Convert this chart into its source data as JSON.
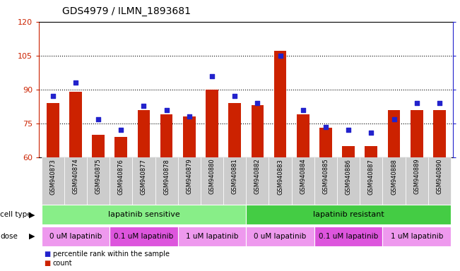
{
  "title": "GDS4979 / ILMN_1893681",
  "samples": [
    "GSM940873",
    "GSM940874",
    "GSM940875",
    "GSM940876",
    "GSM940877",
    "GSM940878",
    "GSM940879",
    "GSM940880",
    "GSM940881",
    "GSM940882",
    "GSM940883",
    "GSM940884",
    "GSM940885",
    "GSM940886",
    "GSM940887",
    "GSM940888",
    "GSM940889",
    "GSM940890"
  ],
  "counts": [
    84,
    89,
    70,
    69,
    81,
    79,
    78,
    90,
    84,
    83,
    107,
    79,
    73,
    65,
    65,
    81,
    81,
    81
  ],
  "percentiles": [
    45,
    55,
    28,
    20,
    38,
    35,
    30,
    60,
    45,
    40,
    75,
    35,
    22,
    20,
    18,
    28,
    40,
    40
  ],
  "ylim_left": [
    60,
    120
  ],
  "ylim_right": [
    0,
    100
  ],
  "yticks_left": [
    60,
    75,
    90,
    105,
    120
  ],
  "yticks_right": [
    0,
    25,
    50,
    75,
    100
  ],
  "bar_color": "#cc2200",
  "dot_color": "#2222cc",
  "cell_type_groups": [
    {
      "label": "lapatinib sensitive",
      "start": 0,
      "end": 9,
      "color": "#88ee88"
    },
    {
      "label": "lapatinib resistant",
      "start": 9,
      "end": 18,
      "color": "#44cc44"
    }
  ],
  "dose_groups": [
    {
      "label": "0 uM lapatinib",
      "start": 0,
      "end": 3,
      "color": "#ee99ee"
    },
    {
      "label": "0.1 uM lapatinib",
      "start": 3,
      "end": 6,
      "color": "#dd55dd"
    },
    {
      "label": "1 uM lapatinib",
      "start": 6,
      "end": 9,
      "color": "#ee99ee"
    },
    {
      "label": "0 uM lapatinib",
      "start": 9,
      "end": 12,
      "color": "#ee99ee"
    },
    {
      "label": "0.1 uM lapatinib",
      "start": 12,
      "end": 15,
      "color": "#dd55dd"
    },
    {
      "label": "1 uM lapatinib",
      "start": 15,
      "end": 18,
      "color": "#ee99ee"
    }
  ],
  "legend_count_label": "count",
  "legend_pct_label": "percentile rank within the sample",
  "cell_type_label": "cell type",
  "dose_label": "dose",
  "title_fontsize": 10,
  "axis_color_left": "#cc2200",
  "axis_color_right": "#2222cc",
  "xticklabel_bg": "#cccccc",
  "xticklabel_fontsize": 6,
  "bar_width": 0.55
}
